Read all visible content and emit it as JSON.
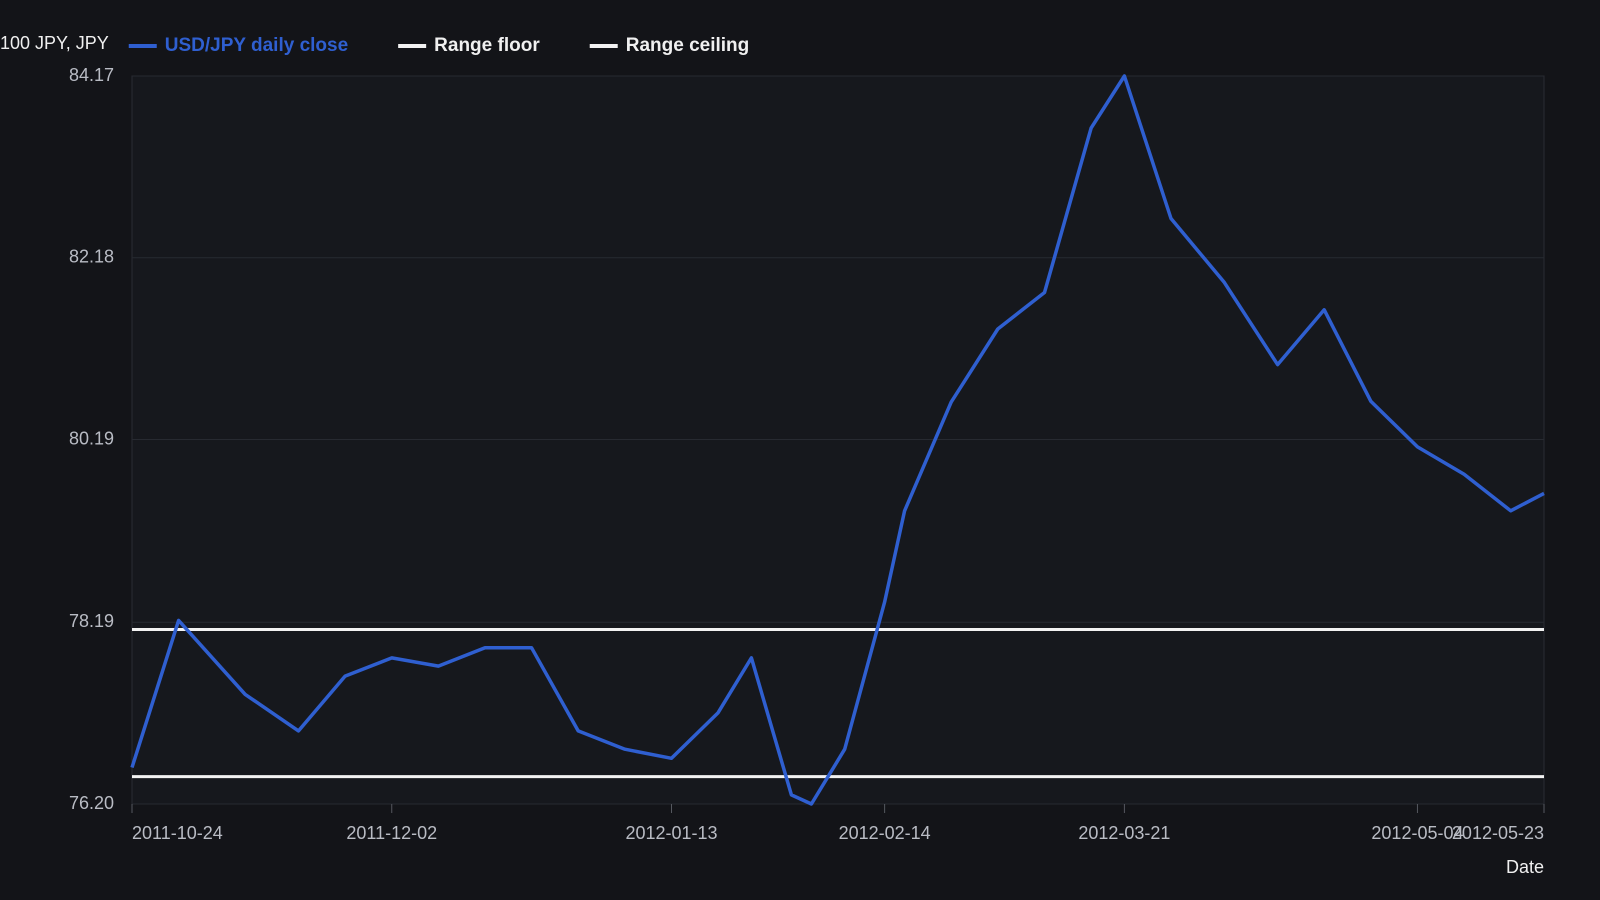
{
  "chart_data": {
    "type": "line",
    "y_label": "100 JPY, JPY",
    "x_label": "Date",
    "x": [
      "2011-10-24",
      "2011-10-31",
      "2011-11-10",
      "2011-11-18",
      "2011-11-25",
      "2011-12-02",
      "2011-12-09",
      "2011-12-16",
      "2011-12-23",
      "2011-12-30",
      "2012-01-06",
      "2012-01-13",
      "2012-01-20",
      "2012-01-25",
      "2012-01-31",
      "2012-02-03",
      "2012-02-08",
      "2012-02-14",
      "2012-02-17",
      "2012-02-24",
      "2012-03-02",
      "2012-03-09",
      "2012-03-16",
      "2012-03-21",
      "2012-03-28",
      "2012-04-05",
      "2012-04-13",
      "2012-04-20",
      "2012-04-27",
      "2012-05-04",
      "2012-05-11",
      "2012-05-18",
      "2012-05-23"
    ],
    "series": [
      {
        "name": "USD/JPY daily close",
        "color": "#2f5fd0",
        "values": [
          76.6,
          78.21,
          77.4,
          77.0,
          77.6,
          77.8,
          77.71,
          77.91,
          77.91,
          77.0,
          76.8,
          76.7,
          77.2,
          77.8,
          76.3,
          76.2,
          76.8,
          78.41,
          79.41,
          80.6,
          81.4,
          81.8,
          83.6,
          84.17,
          82.61,
          81.91,
          81.01,
          81.61,
          80.61,
          80.11,
          79.81,
          79.41,
          79.6
        ]
      },
      {
        "name": "Range floor",
        "color": "#f2f2f2",
        "x": [
          "2011-10-24",
          "2012-05-23"
        ],
        "values": [
          76.5,
          76.5
        ]
      },
      {
        "name": "Range ceiling",
        "color": "#f2f2f2",
        "x": [
          "2011-10-24",
          "2012-05-23"
        ],
        "values": [
          78.11,
          78.11
        ]
      }
    ],
    "xlim": [
      "2011-10-24",
      "2012-05-23"
    ],
    "xticks": [
      "2011-10-24",
      "2011-12-02",
      "2012-01-13",
      "2012-02-14",
      "2012-03-21",
      "2012-05-04",
      "2012-05-23"
    ],
    "ylim": [
      76.2,
      84.17
    ],
    "yticks": [
      {
        "value": 76.2,
        "label": "76.20"
      },
      78.19,
      80.19,
      82.18,
      84.17
    ],
    "grid": true,
    "legend": "top-left"
  }
}
